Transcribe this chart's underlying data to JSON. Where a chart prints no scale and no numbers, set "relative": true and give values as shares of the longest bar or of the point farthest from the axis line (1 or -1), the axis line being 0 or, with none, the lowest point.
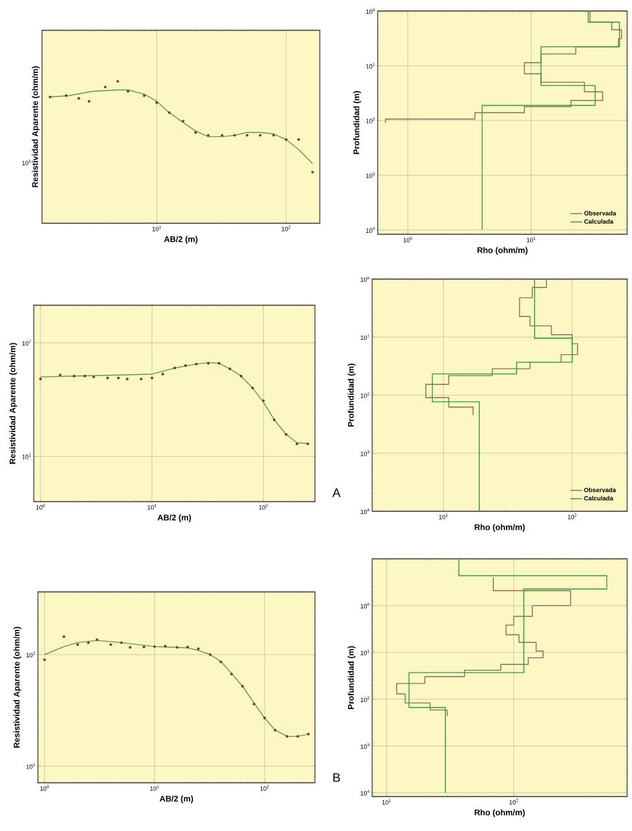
{
  "chart_data": [
    {
      "type": "line",
      "xlabel": "AB/2 (m)",
      "ylabel": "Resistividad Aparente (ohm/m)",
      "log": "x",
      "grid": "x",
      "relative": true,
      "annotations": [
        "10$^{1}$"
      ],
      "xlim": [
        1.3,
        182
      ],
      "xticks": [
        {
          "value": 10,
          "label": "10$^{1}$"
        },
        {
          "value": 100,
          "label": "10$^{2}$"
        }
      ],
      "series": [
        {
          "type": "scatter",
          "color": "#8b2a1a",
          "x": [
            1.5,
            2,
            2.5,
            3,
            4,
            5,
            6,
            8,
            10,
            12.5,
            16,
            20,
            25,
            32,
            40,
            50,
            63,
            80,
            100,
            125,
            160
          ],
          "values": [
            0.89,
            0.9,
            0.88,
            0.86,
            0.96,
            1,
            0.93,
            0.9,
            0.85,
            0.78,
            0.72,
            0.64,
            0.62,
            0.62,
            0.62,
            0.62,
            0.62,
            0.62,
            0.59,
            0.59,
            0.36
          ]
        },
        {
          "type": "line",
          "color": "#5a9e5a",
          "x": [
            1.5,
            2.1,
            3.2,
            5,
            6,
            8,
            10,
            12.5,
            16,
            20,
            25,
            32,
            40,
            50,
            63,
            80,
            100,
            125,
            160
          ],
          "values": [
            0.89,
            0.9,
            0.93,
            0.94,
            0.94,
            0.91,
            0.86,
            0.78,
            0.71,
            0.65,
            0.61,
            0.61,
            0.62,
            0.64,
            0.64,
            0.63,
            0.59,
            0.52,
            0.42
          ]
        }
      ]
    },
    {
      "type": "line",
      "xlabel": "Rho (ohm/m)",
      "ylabel": "Profundidad (m)",
      "log": "xy",
      "grid": true,
      "legend": "bottom right",
      "xlim": [
        0.57,
        60
      ],
      "ylim": [
        12000,
        1
      ],
      "xticks": [
        {
          "value": 1,
          "label": "10$^{0}$"
        },
        {
          "value": 10,
          "label": "10$^{1}$"
        }
      ],
      "yticks": [
        {
          "value": 1,
          "label": "10$^{0}$"
        },
        {
          "value": 10,
          "label": "10$^{1}$"
        },
        {
          "value": 100,
          "label": "10$^{2}$"
        },
        {
          "value": 1000,
          "label": "10$^{3}$"
        },
        {
          "value": 10000,
          "label": "10$^{4}$"
        }
      ],
      "series": [
        {
          "name": "Observada",
          "color": "#8b7060",
          "x": [
            30,
            30,
            45,
            45,
            54,
            54,
            51,
            51,
            23,
            23,
            12,
            12,
            8.8,
            8.8,
            12,
            12,
            27,
            27,
            38,
            38,
            21,
            21,
            8.8,
            8.8,
            3.5,
            3.5,
            0.66,
            0.66
          ],
          "values": [
            1,
            1.6,
            1.6,
            2.2,
            2.2,
            3.2,
            3.2,
            4.5,
            4.5,
            6.1,
            6.1,
            8.8,
            8.8,
            14,
            14,
            20,
            20,
            30,
            30,
            43,
            43,
            56,
            56,
            72,
            72,
            94,
            94,
            110
          ]
        },
        {
          "name": "Calculada",
          "color": "#2e9e3e",
          "x": [
            29,
            29,
            52,
            52,
            12,
            12,
            33,
            33,
            4,
            4
          ],
          "values": [
            1,
            1.6,
            1.6,
            4.5,
            4.5,
            23,
            23,
            53,
            53,
            10000
          ]
        }
      ]
    },
    {
      "type": "line",
      "xlabel": "AB/2 (m)",
      "ylabel": "Resistividad Aparente (ohm/m)",
      "log": "xy",
      "grid": true,
      "xlim": [
        0.87,
        290
      ],
      "ylim": [
        4,
        214
      ],
      "xticks": [
        {
          "value": 1,
          "label": "10$^{0}$"
        },
        {
          "value": 10,
          "label": "10$^{1}$"
        },
        {
          "value": 100,
          "label": "10$^{2}$"
        }
      ],
      "yticks": [
        {
          "value": 10,
          "label": "10$^{1}$"
        },
        {
          "value": 100,
          "label": "10$^{2}$"
        }
      ],
      "series": [
        {
          "type": "scatter",
          "color": "#8b2a1a",
          "x": [
            1,
            1.5,
            2,
            2.5,
            3,
            4,
            5,
            6,
            8,
            10,
            12.5,
            16,
            20,
            25,
            32,
            40,
            50,
            63,
            80,
            100,
            125,
            160,
            200,
            250
          ],
          "values": [
            48,
            52,
            51,
            51,
            50,
            49,
            49,
            48,
            48,
            49,
            53,
            60,
            63,
            65,
            66,
            66,
            59,
            51,
            40,
            31,
            21,
            15.6,
            12.9,
            12.9
          ]
        },
        {
          "type": "line",
          "color": "#5a9e5a",
          "x": [
            1,
            2,
            5,
            10,
            16,
            25,
            32,
            40,
            50,
            63,
            80,
            100,
            125,
            160,
            200,
            250
          ],
          "values": [
            50,
            51,
            52,
            53,
            60,
            65,
            67,
            66,
            59,
            51,
            40,
            30,
            21,
            15.6,
            13.2,
            13
          ]
        }
      ]
    },
    {
      "type": "line",
      "xlabel": "Rho (ohm/m)",
      "ylabel": "Profundidad (m)",
      "log": "xy",
      "grid": true,
      "legend": "bottom right",
      "annotations": [
        "A"
      ],
      "xlim": [
        2.8,
        267
      ],
      "ylim": [
        10000,
        1
      ],
      "xticks": [
        {
          "value": 10,
          "label": "10$^{1}$"
        },
        {
          "value": 100,
          "label": "10$^{2}$"
        }
      ],
      "yticks": [
        {
          "value": 1,
          "label": "10$^{0}$"
        },
        {
          "value": 10,
          "label": "10$^{1}$"
        },
        {
          "value": 100,
          "label": "10$^{2}$"
        },
        {
          "value": 1000,
          "label": "10$^{3}$"
        },
        {
          "value": 10000,
          "label": "10$^{4}$"
        }
      ],
      "series": [
        {
          "name": "Observada",
          "color": "#8b7060",
          "x": [
            63,
            63,
            49,
            49,
            39,
            39,
            47,
            47,
            69,
            69,
            100,
            100,
            110,
            110,
            82,
            82,
            47,
            47,
            24,
            24,
            11,
            11,
            7.3,
            7.3,
            11,
            11,
            17,
            17
          ],
          "values": [
            1,
            1.4,
            1.4,
            2.1,
            2.1,
            4.4,
            4.4,
            6.4,
            6.4,
            9.1,
            9.1,
            13,
            13,
            20,
            20,
            27,
            27,
            35,
            35,
            46,
            46,
            65,
            65,
            110,
            110,
            160,
            160,
            220
          ]
        },
        {
          "name": "Calculada",
          "color": "#2e9e3e",
          "x": [
            51,
            51,
            100,
            100,
            37,
            37,
            8.2,
            8.2,
            19,
            19
          ],
          "values": [
            1,
            10.5,
            10.5,
            27,
            27,
            43,
            43,
            130,
            130,
            10000
          ]
        }
      ]
    },
    {
      "type": "line",
      "xlabel": "AB/2 (m)",
      "ylabel": "Resistividad Aparente (ohm/m)",
      "log": "xy",
      "grid": true,
      "xlim": [
        0.87,
        287
      ],
      "ylim": [
        7.1,
        365
      ],
      "xticks": [
        {
          "value": 1,
          "label": "10$^{0}$"
        },
        {
          "value": 10,
          "label": "10$^{1}$"
        },
        {
          "value": 100,
          "label": "10$^{2}$"
        }
      ],
      "yticks": [
        {
          "value": 10,
          "label": "10$^{1}$"
        },
        {
          "value": 100,
          "label": "10$^{2}$"
        }
      ],
      "series": [
        {
          "type": "scatter",
          "color": "#8b2a1a",
          "x": [
            1,
            1.5,
            2,
            2.5,
            3,
            4,
            5,
            6,
            8,
            10,
            12.5,
            16,
            20,
            25,
            32,
            40,
            50,
            63,
            80,
            100,
            125,
            160,
            200,
            250
          ],
          "values": [
            90,
            145,
            123,
            128,
            136,
            123,
            128,
            116,
            117,
            118,
            119,
            116,
            117,
            113,
            100,
            86,
            67,
            52,
            36,
            27,
            21,
            18.5,
            18.5,
            19.4
          ]
        },
        {
          "type": "line",
          "color": "#5a9e5a",
          "x": [
            1,
            1.5,
            2,
            3,
            5,
            10,
            20,
            25,
            32,
            40,
            50,
            63,
            80,
            100,
            125,
            160,
            200,
            250
          ],
          "values": [
            100,
            118,
            128,
            134,
            128,
            118,
            115,
            109,
            100,
            87,
            68,
            52,
            37,
            27,
            21,
            18.5,
            18.5,
            19.4
          ]
        }
      ]
    },
    {
      "type": "line",
      "xlabel": "Rho (ohm/m)",
      "ylabel": "Profundidad (m)",
      "log": "xy",
      "grid": true,
      "annotations": [
        "B"
      ],
      "xlim": [
        7.7,
        780
      ],
      "ylim": [
        12000,
        0.1
      ],
      "xticks": [
        {
          "value": 10,
          "label": "10$^{1}$"
        },
        {
          "value": 100,
          "label": "10$^{2}$"
        }
      ],
      "yticks": [
        {
          "value": 1,
          "label": "10$^{0}$"
        },
        {
          "value": 10,
          "label": "10$^{1}$"
        },
        {
          "value": 100,
          "label": "10$^{2}$"
        },
        {
          "value": 1000,
          "label": "10$^{3}$"
        },
        {
          "value": 10000,
          "label": "10$^{4}$"
        }
      ],
      "series": [
        {
          "color": "#8b7060",
          "x": [
            69,
            69,
            280,
            280,
            140,
            140,
            100,
            100,
            87,
            87,
            110,
            110,
            150,
            150,
            170,
            170,
            130,
            130,
            79,
            79,
            41,
            41,
            20,
            20,
            12,
            12,
            14,
            14,
            22,
            22,
            30,
            30
          ],
          "values": [
            0.25,
            0.48,
            0.48,
            1,
            1,
            1.7,
            1.7,
            2.6,
            2.6,
            4.2,
            4.2,
            6.1,
            6.1,
            9.3,
            9.3,
            13,
            13,
            18,
            18,
            24,
            24,
            33,
            33,
            46,
            46,
            77,
            77,
            120,
            120,
            170,
            170,
            230
          ]
        },
        {
          "color": "#2e9e3e",
          "x": [
            37,
            37,
            540,
            540,
            120,
            120,
            15,
            15,
            29,
            29
          ],
          "values": [
            0.1,
            0.23,
            0.23,
            0.44,
            0.44,
            27,
            27,
            150,
            150,
            10000
          ]
        }
      ]
    }
  ]
}
